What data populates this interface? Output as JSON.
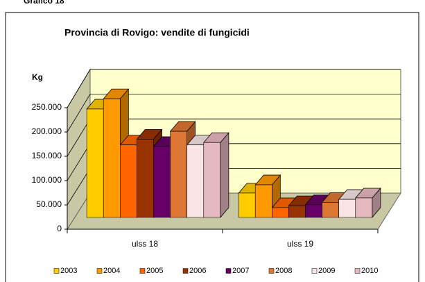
{
  "caption": "Grafico 18",
  "chart_data": {
    "type": "bar3d",
    "title": "Provincia di Rovigo: vendite di fungicidi",
    "ylabel": "Kg",
    "categories": [
      "ulss 18",
      "ulss 19"
    ],
    "series": [
      {
        "name": "2003",
        "color": "#ffcc00",
        "values": [
          223000,
          50000
        ]
      },
      {
        "name": "2004",
        "color": "#ff9900",
        "values": [
          244000,
          67000
        ]
      },
      {
        "name": "2005",
        "color": "#ff6600",
        "values": [
          149000,
          20000
        ]
      },
      {
        "name": "2006",
        "color": "#993300",
        "values": [
          161000,
          24000
        ]
      },
      {
        "name": "2007",
        "color": "#660066",
        "values": [
          146000,
          26000
        ]
      },
      {
        "name": "2008",
        "color": "#dd7733",
        "values": [
          177000,
          31000
        ]
      },
      {
        "name": "2009",
        "color": "#f8e4e4",
        "values": [
          149000,
          37000
        ]
      },
      {
        "name": "2010",
        "color": "#e6b8c0",
        "values": [
          154000,
          40000
        ]
      }
    ],
    "ylim": [
      0,
      250000
    ],
    "yticks": [
      0,
      {
        "value": 50000,
        "label": "50.000"
      },
      {
        "value": 100000,
        "label": "100.000"
      },
      {
        "value": 150000,
        "label": "150.000"
      },
      {
        "value": 200000,
        "label": "200.000"
      },
      {
        "value": 250000,
        "label": "250.000"
      }
    ],
    "grid": true,
    "legend": "bottom"
  }
}
